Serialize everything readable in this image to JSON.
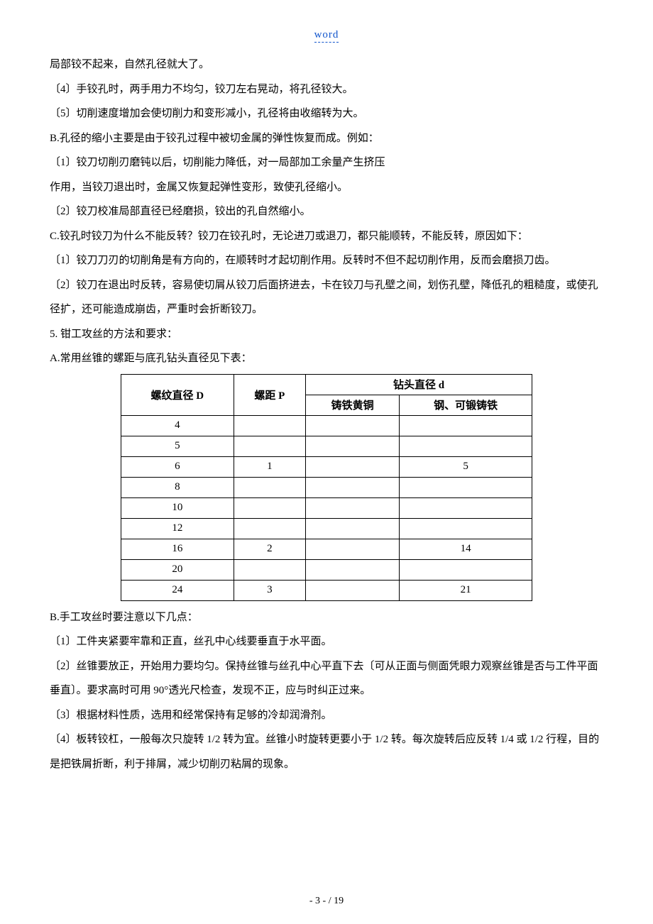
{
  "header_link": "word",
  "paragraphs_before": [
    "局部铰不起来，自然孔径就大了。",
    "〔4〕手铰孔时，两手用力不均匀，铰刀左右晃动，将孔径铰大。",
    "〔5〕切削速度增加会使切削力和变形减小，孔径将由收缩转为大。",
    "B.孔径的缩小主要是由于铰孔过程中被切金属的弹性恢复而成。例如：",
    "〔1〕铰刀切削刃磨钝以后，切削能力降低，对一局部加工余量产生挤压",
    "作用，当铰刀退出时，金属又恢复起弹性变形，致使孔径缩小。",
    "〔2〕铰刀校准局部直径已经磨损，铰出的孔自然缩小。",
    "C.铰孔时铰刀为什么不能反转？铰刀在铰孔时，无论进刀或退刀，都只能顺转，不能反转，原因如下：",
    "〔1〕铰刀刀刃的切削角是有方向的，在顺转时才起切削作用。反转时不但不起切削作用，反而会磨损刀齿。",
    "〔2〕铰刀在退出时反转，容易使切屑从铰刀后面挤进去，卡在铰刀与孔壁之间，划伤孔壁，降低孔的粗糙度，或使孔径扩，还可能造成崩齿，严重时会折断铰刀。",
    "5.  钳工攻丝的方法和要求：",
    "A.常用丝锥的螺距与底孔钻头直径见下表："
  ],
  "table": {
    "h_col1": "螺纹直径 D",
    "h_col2": "螺距 P",
    "h_col3": "钻头直径 d",
    "h_col3a": "铸铁黄铜",
    "h_col3b": "钢、可锻铸铁",
    "rows": [
      {
        "d": "4",
        "p": "",
        "a": "",
        "b": ""
      },
      {
        "d": "5",
        "p": "",
        "a": "",
        "b": ""
      },
      {
        "d": "6",
        "p": "1",
        "a": "",
        "b": "5"
      },
      {
        "d": "8",
        "p": "",
        "a": "",
        "b": ""
      },
      {
        "d": "10",
        "p": "",
        "a": "",
        "b": ""
      },
      {
        "d": "12",
        "p": "",
        "a": "",
        "b": ""
      },
      {
        "d": "16",
        "p": "2",
        "a": "",
        "b": "14"
      },
      {
        "d": "20",
        "p": "",
        "a": "",
        "b": ""
      },
      {
        "d": "24",
        "p": "3",
        "a": "",
        "b": "21"
      }
    ]
  },
  "paragraphs_after": [
    "B.手工攻丝时要注意以下几点：",
    "〔1〕工件夹紧要牢靠和正直，丝孔中心线要垂直于水平面。",
    "〔2〕丝锥要放正，开始用力要均匀。保持丝锥与丝孔中心平直下去〔可从正面与侧面凭眼力观察丝锥是否与工件平面垂直〕。要求高时可用 90°透光尺检查，发现不正，应与时纠正过来。",
    "〔3〕根据材料性质，选用和经常保持有足够的冷却润滑剂。",
    "〔4〕板转铰杠，一般每次只旋转 1/2 转为宜。丝锥小时旋转更要小于 1/2 转。每次旋转后应反转 1/4 或 1/2 行程，目的是把铁屑折断，利于排屑，减少切削刃粘屑的现象。"
  ],
  "footer": "- 3 -  / 19"
}
